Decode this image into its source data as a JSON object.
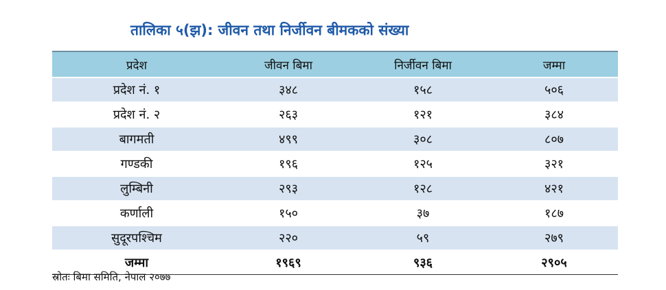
{
  "title": "तालिका ५(झ): जीवन तथा निर्जीवन बीमकको संख्या",
  "table": {
    "headers": [
      "प्रदेश",
      "जीवन बिमा",
      "निर्जीवन बिमा",
      "जम्मा"
    ],
    "rows": [
      [
        "प्रदेश नं. १",
        "३४८",
        "१५८",
        "५०६"
      ],
      [
        "प्रदेश नं. २",
        "२६३",
        "१२१",
        "३८४"
      ],
      [
        "बागमती",
        "४९९",
        "३०८",
        "८०७"
      ],
      [
        "गण्डकी",
        "१९६",
        "१२५",
        "३२१"
      ],
      [
        "लुम्बिनी",
        "२९३",
        "१२८",
        "४२१"
      ],
      [
        "कर्णाली",
        "१५०",
        "३७",
        "१८७"
      ],
      [
        "सुदूरपश्चिम",
        "२२०",
        "५९",
        "२७९"
      ]
    ],
    "total_row": [
      "जम्मा",
      "१९६९",
      "९३६",
      "२९०५"
    ]
  },
  "source": "स्रोतः बिमा समिति, नेपाल २०७७",
  "colors": {
    "title": "#1f5aa8",
    "header_bg": "#9ccfe1",
    "shaded_row_bg": "#d7e3f1"
  }
}
